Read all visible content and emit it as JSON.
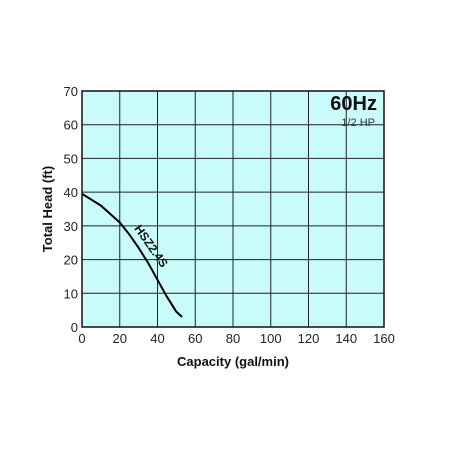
{
  "chart_data": {
    "type": "line",
    "title": "60Hz",
    "subtitle": "1/2 HP",
    "xlabel": "Capacity (gal/min)",
    "ylabel": "Total Head (ft)",
    "xlim": [
      0,
      160
    ],
    "ylim": [
      0,
      70
    ],
    "x_ticks": [
      "0",
      "20",
      "40",
      "60",
      "80",
      "100",
      "120",
      "140",
      "160"
    ],
    "y_ticks": [
      "0",
      "10",
      "20",
      "30",
      "40",
      "50",
      "60",
      "70"
    ],
    "grid": true,
    "plot_background": "#c9fbfb",
    "line_color": "#000000",
    "series": [
      {
        "name": "HSZ2.4S",
        "x": [
          0,
          10,
          20,
          25,
          30,
          35,
          40,
          45,
          50,
          53
        ],
        "y": [
          39.5,
          36,
          31,
          27.5,
          23.5,
          19,
          14,
          9,
          4.5,
          3
        ]
      }
    ]
  }
}
